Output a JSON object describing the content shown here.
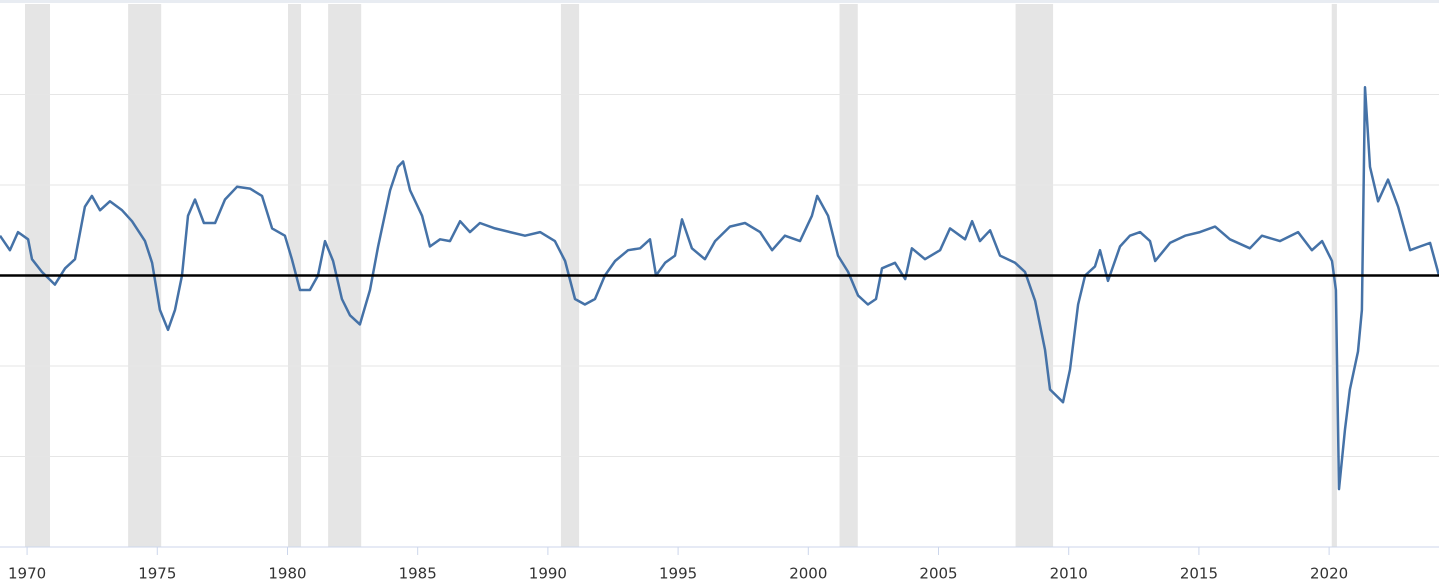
{
  "chart_data": {
    "type": "line",
    "xlim": [
      1968.96,
      2024.22
    ],
    "ylim": [
      -15,
      15
    ],
    "xticks": [
      1970,
      1975,
      1980,
      1985,
      1990,
      1995,
      2000,
      2005,
      2010,
      2015,
      2020
    ],
    "yticks": [
      -10,
      -5,
      0,
      5,
      10
    ],
    "grid": true,
    "hline": 0,
    "recessions": [
      [
        1969.92,
        1970.88
      ],
      [
        1973.88,
        1975.15
      ],
      [
        1980.02,
        1980.52
      ],
      [
        1981.56,
        1982.83
      ],
      [
        1990.5,
        1991.2
      ],
      [
        2001.2,
        2001.9
      ],
      [
        2007.96,
        2009.4
      ],
      [
        2020.1,
        2020.3
      ]
    ],
    "recession_color": "#e5e5e5",
    "series": [
      {
        "color": "#4572a7",
        "x": [
          1968.96,
          1969.34,
          1969.65,
          1970.04,
          1970.19,
          1970.57,
          1971.07,
          1971.46,
          1971.84,
          1972.22,
          1972.49,
          1972.8,
          1973.18,
          1973.65,
          1974.03,
          1974.53,
          1974.8,
          1975.1,
          1975.41,
          1975.68,
          1975.95,
          1976.18,
          1976.45,
          1976.79,
          1977.22,
          1977.6,
          1978.06,
          1978.56,
          1979.02,
          1979.41,
          1979.9,
          1980.17,
          1980.48,
          1980.86,
          1981.17,
          1981.44,
          1981.75,
          1982.09,
          1982.4,
          1982.78,
          1983.17,
          1983.48,
          1983.94,
          1984.24,
          1984.44,
          1984.71,
          1985.17,
          1985.47,
          1985.86,
          1986.24,
          1986.63,
          1987.01,
          1987.39,
          1987.97,
          1988.55,
          1989.12,
          1989.7,
          1990.27,
          1990.66,
          1991.04,
          1991.42,
          1991.81,
          1992.19,
          1992.58,
          1993.08,
          1993.54,
          1993.92,
          1994.15,
          1994.5,
          1994.88,
          1995.15,
          1995.53,
          1996.03,
          1996.42,
          1996.99,
          1997.57,
          1998.15,
          1998.61,
          1999.1,
          1999.68,
          2000.14,
          2000.34,
          2000.76,
          2001.14,
          2001.53,
          2001.91,
          2002.29,
          2002.6,
          2002.83,
          2003.33,
          2003.72,
          2003.98,
          2004.48,
          2005.06,
          2005.44,
          2006.02,
          2006.29,
          2006.59,
          2006.98,
          2007.36,
          2007.94,
          2008.32,
          2008.71,
          2009.09,
          2009.28,
          2009.78,
          2010.05,
          2010.36,
          2010.63,
          2011.01,
          2011.2,
          2011.51,
          2011.97,
          2012.35,
          2012.74,
          2013.12,
          2013.32,
          2013.89,
          2014.47,
          2015.04,
          2015.62,
          2016.19,
          2016.96,
          2017.42,
          2018.11,
          2018.81,
          2019.34,
          2019.73,
          2020.11,
          2020.26,
          2020.38,
          2020.61,
          2020.8,
          2021.11,
          2021.26,
          2021.38,
          2021.57,
          2021.88,
          2022.26,
          2022.65,
          2023.11,
          2023.49,
          2023.88,
          2024.22
        ],
        "values": [
          2.2,
          1.4,
          2.4,
          2.0,
          0.9,
          0.2,
          -0.5,
          0.4,
          0.9,
          3.8,
          4.4,
          3.6,
          4.1,
          3.6,
          3.0,
          1.9,
          0.7,
          -1.9,
          -3.0,
          -1.9,
          0,
          3.3,
          4.2,
          2.9,
          2.9,
          4.2,
          4.9,
          4.8,
          4.4,
          2.6,
          2.2,
          0.9,
          -0.8,
          -0.8,
          0,
          1.9,
          0.8,
          -1.3,
          -2.2,
          -2.7,
          -0.8,
          1.6,
          4.7,
          6.0,
          6.3,
          4.7,
          3.3,
          1.6,
          2.0,
          1.9,
          3.0,
          2.4,
          2.9,
          2.6,
          2.4,
          2.2,
          2.4,
          1.9,
          0.8,
          -1.3,
          -1.6,
          -1.3,
          0,
          0.8,
          1.4,
          1.5,
          2.0,
          0,
          0.7,
          1.1,
          3.1,
          1.5,
          0.9,
          1.9,
          2.7,
          2.9,
          2.4,
          1.4,
          2.2,
          1.9,
          3.3,
          4.4,
          3.3,
          1.1,
          0.2,
          -1.1,
          -1.6,
          -1.3,
          0.4,
          0.7,
          -0.2,
          1.5,
          0.9,
          1.4,
          2.6,
          2.0,
          3.0,
          1.9,
          2.5,
          1.1,
          0.7,
          0.2,
          -1.4,
          -4.1,
          -6.3,
          -7.0,
          -5.2,
          -1.6,
          0,
          0.5,
          1.4,
          -0.3,
          1.6,
          2.2,
          2.4,
          1.9,
          0.8,
          1.8,
          2.2,
          2.4,
          2.7,
          2.0,
          1.5,
          2.2,
          1.9,
          2.4,
          1.4,
          1.9,
          0.8,
          -0.8,
          -11.8,
          -8.5,
          -6.3,
          -4.2,
          -1.9,
          10.4,
          6.0,
          4.1,
          5.3,
          3.8,
          1.4,
          1.6,
          1.8,
          0
        ]
      }
    ]
  }
}
